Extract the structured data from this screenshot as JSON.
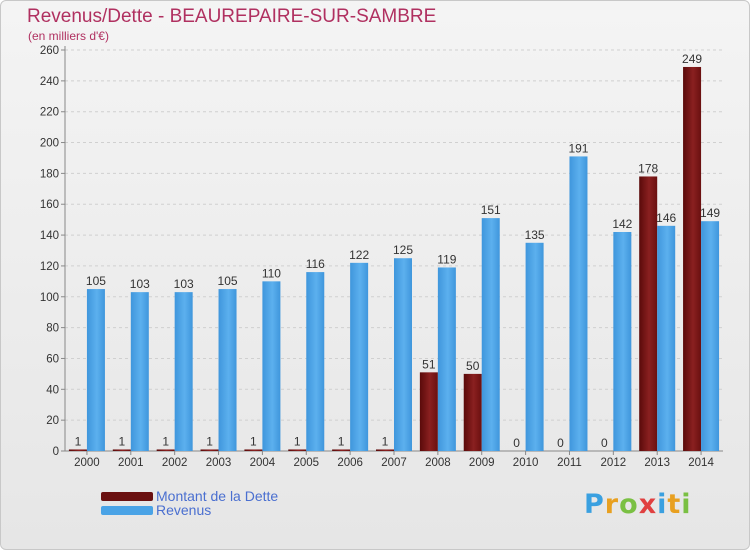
{
  "chart_data": {
    "type": "bar",
    "title": "Revenus/Dette - BEAUREPAIRE-SUR-SAMBRE",
    "subtitle": "(en milliers d'€)",
    "categories": [
      "2000",
      "2001",
      "2002",
      "2003",
      "2004",
      "2005",
      "2006",
      "2007",
      "2008",
      "2009",
      "2010",
      "2011",
      "2012",
      "2013",
      "2014"
    ],
    "series": [
      {
        "name": "Montant de la Dette",
        "color": "#7a1414",
        "values": [
          1,
          1,
          1,
          1,
          1,
          1,
          1,
          1,
          51,
          50,
          0,
          0,
          0,
          178,
          249
        ]
      },
      {
        "name": "Revenus",
        "color": "#4aa3e6",
        "values": [
          105,
          103,
          103,
          105,
          110,
          116,
          122,
          125,
          119,
          151,
          135,
          191,
          142,
          146,
          149
        ]
      }
    ],
    "ylim": [
      0,
      260
    ],
    "yticks": [
      0,
      20,
      40,
      60,
      80,
      100,
      120,
      140,
      160,
      180,
      200,
      220,
      240,
      260
    ],
    "grid": true,
    "legend_position": "bottom-left"
  },
  "logo": {
    "text": "Proxiti"
  }
}
